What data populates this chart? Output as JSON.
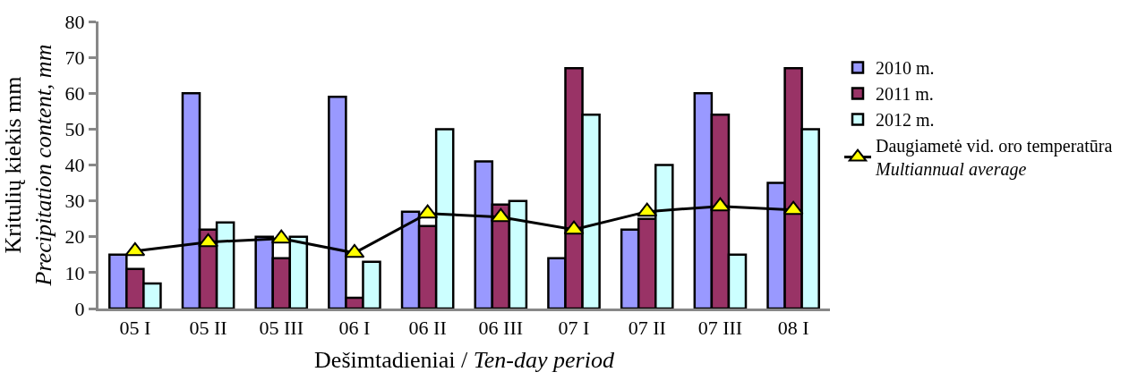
{
  "chart_data": {
    "type": "bar",
    "xlabel": "Dešimtadieniai / Ten-day period",
    "ylabel": "Kritulių kiekis mm\nPrecipitation content, mm",
    "categories": [
      "05 I",
      "05 II",
      "05 III",
      "06 I",
      "06 II",
      "06 III",
      "07 I",
      "07 II",
      "07 III",
      "08 I"
    ],
    "series": [
      {
        "name": "2010 m.",
        "color": "#9999ff",
        "values": [
          15,
          60,
          20,
          59,
          27,
          41,
          14,
          22,
          60,
          35
        ]
      },
      {
        "name": "2011 m.",
        "color": "#993366",
        "values": [
          11,
          22,
          14,
          3,
          23,
          29,
          67,
          25,
          54,
          67
        ]
      },
      {
        "name": "2012 m.",
        "color": "#ccffff",
        "values": [
          7,
          24,
          20,
          13,
          50,
          30,
          54,
          40,
          15,
          50
        ]
      },
      {
        "name": "Daugiametė vid. oro temperatūra\nMultiannual average",
        "type": "line",
        "color": "#000000",
        "marker": "triangle",
        "values": [
          16,
          18.5,
          19.5,
          15.5,
          26.5,
          25.5,
          22,
          27,
          28.5,
          27.5
        ]
      }
    ],
    "ylim": [
      0,
      80
    ],
    "yticks": [
      0,
      10,
      20,
      30,
      40,
      50,
      60,
      70,
      80
    ],
    "legend": "right"
  }
}
